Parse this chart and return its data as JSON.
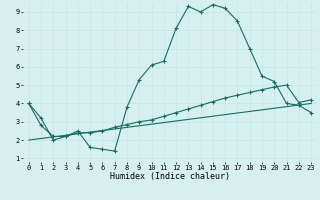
{
  "xlabel": "Humidex (Indice chaleur)",
  "bg_color": "#d6f0ef",
  "grid_color": "#aaddda",
  "line_color": "#1a6b64",
  "line1_x": [
    0,
    1,
    2,
    3,
    4,
    5,
    6,
    7,
    8,
    9,
    10,
    11,
    12,
    13,
    14,
    15,
    16,
    17,
    18,
    19,
    20,
    21,
    22,
    23
  ],
  "line1_y": [
    4.0,
    3.2,
    2.0,
    2.2,
    2.5,
    1.6,
    1.5,
    1.4,
    3.8,
    5.3,
    6.1,
    6.3,
    8.1,
    9.3,
    9.0,
    9.4,
    9.2,
    8.5,
    7.0,
    5.5,
    5.2,
    4.0,
    3.9,
    3.5
  ],
  "line2_x": [
    0,
    1,
    2,
    3,
    4,
    5,
    6,
    7,
    8,
    9,
    10,
    11,
    12,
    13,
    14,
    15,
    16,
    17,
    18,
    19,
    20,
    21,
    22,
    23
  ],
  "line2_y": [
    4.0,
    2.8,
    2.2,
    2.2,
    2.4,
    2.4,
    2.5,
    2.7,
    2.85,
    3.0,
    3.1,
    3.3,
    3.5,
    3.7,
    3.9,
    4.1,
    4.3,
    4.45,
    4.6,
    4.75,
    4.9,
    5.0,
    4.05,
    4.2
  ],
  "line3_x": [
    0,
    23
  ],
  "line3_y": [
    2.0,
    4.0
  ],
  "xlim": [
    -0.5,
    23.5
  ],
  "ylim": [
    0.8,
    9.5
  ],
  "xticks": [
    0,
    1,
    2,
    3,
    4,
    5,
    6,
    7,
    8,
    9,
    10,
    11,
    12,
    13,
    14,
    15,
    16,
    17,
    18,
    19,
    20,
    21,
    22,
    23
  ],
  "yticks": [
    1,
    2,
    3,
    4,
    5,
    6,
    7,
    8,
    9
  ],
  "tick_fontsize": 5.0,
  "xlabel_fontsize": 6.0,
  "linewidth1": 0.8,
  "linewidth2": 0.8,
  "linewidth3": 0.8,
  "markersize": 2.5
}
